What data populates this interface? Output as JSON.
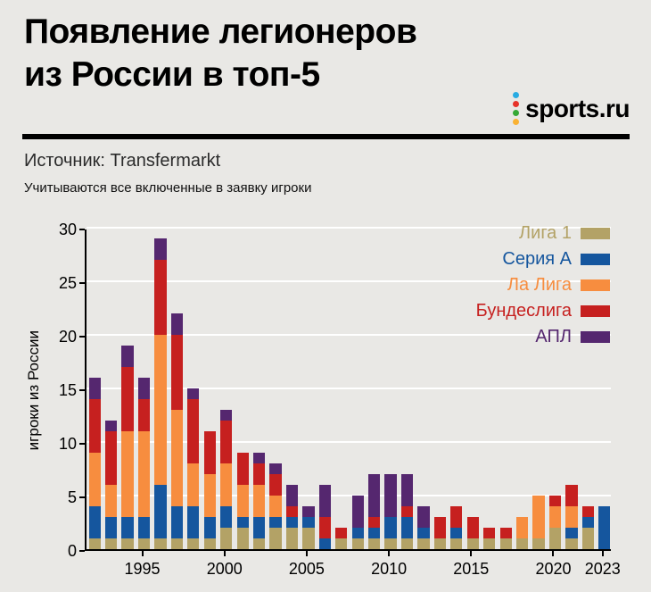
{
  "header": {
    "title_line1": "Появление легионеров",
    "title_line2": "из России в топ-5",
    "logo_text": "sports.ru"
  },
  "source": {
    "label": "Источник: Transfermarkt",
    "note": "Учитываются все включенные в заявку игроки"
  },
  "chart_data": {
    "type": "bar",
    "stacked": true,
    "title": "Появление легионеров из России в топ-5",
    "xlabel": "",
    "ylabel": "игроки из России",
    "ylim": [
      0,
      30
    ],
    "yticks": [
      0,
      5,
      10,
      15,
      20,
      25,
      30
    ],
    "xticks": [
      1995,
      2000,
      2005,
      2010,
      2015,
      2020,
      2023
    ],
    "grid": true,
    "legend_position": "top-right",
    "years": [
      1992,
      1993,
      1994,
      1995,
      1996,
      1997,
      1998,
      1999,
      2000,
      2001,
      2002,
      2003,
      2004,
      2005,
      2006,
      2007,
      2008,
      2009,
      2010,
      2011,
      2012,
      2013,
      2014,
      2015,
      2016,
      2017,
      2018,
      2019,
      2020,
      2021,
      2022,
      2023
    ],
    "series": [
      {
        "name": "Лига 1",
        "color": "#b3a266",
        "values": [
          1,
          1,
          1,
          1,
          1,
          1,
          1,
          1,
          2,
          2,
          1,
          2,
          2,
          2,
          0,
          1,
          1,
          1,
          1,
          1,
          1,
          1,
          1,
          1,
          1,
          1,
          1,
          1,
          2,
          1,
          2,
          0
        ]
      },
      {
        "name": "Серия А",
        "color": "#15569e",
        "values": [
          3,
          2,
          2,
          2,
          5,
          3,
          3,
          2,
          2,
          1,
          2,
          1,
          1,
          1,
          1,
          0,
          1,
          1,
          2,
          2,
          1,
          0,
          1,
          0,
          0,
          0,
          0,
          0,
          0,
          1,
          1,
          4
        ]
      },
      {
        "name": "Ла Лига",
        "color": "#f78d3f",
        "values": [
          5,
          3,
          8,
          8,
          14,
          9,
          4,
          4,
          4,
          3,
          3,
          2,
          0,
          0,
          0,
          0,
          0,
          0,
          0,
          0,
          0,
          0,
          0,
          0,
          0,
          0,
          2,
          4,
          2,
          2,
          0,
          0
        ]
      },
      {
        "name": "Бундеслига",
        "color": "#c6201f",
        "values": [
          5,
          5,
          6,
          3,
          7,
          7,
          6,
          4,
          4,
          3,
          2,
          2,
          1,
          0,
          2,
          1,
          0,
          1,
          0,
          1,
          0,
          2,
          2,
          2,
          1,
          1,
          0,
          0,
          1,
          2,
          1,
          0
        ]
      },
      {
        "name": "АПЛ",
        "color": "#55276f",
        "values": [
          2,
          1,
          2,
          2,
          2,
          2,
          1,
          0,
          1,
          0,
          1,
          1,
          2,
          1,
          3,
          0,
          3,
          4,
          4,
          3,
          2,
          0,
          0,
          0,
          0,
          0,
          0,
          0,
          0,
          0,
          0,
          0
        ]
      }
    ]
  },
  "colors": {
    "background": "#e9e8e5",
    "grid": "#ffffff",
    "axis": "#000000",
    "logo_dots": [
      "#29abe2",
      "#e6332a",
      "#36a936",
      "#f9b233"
    ]
  }
}
